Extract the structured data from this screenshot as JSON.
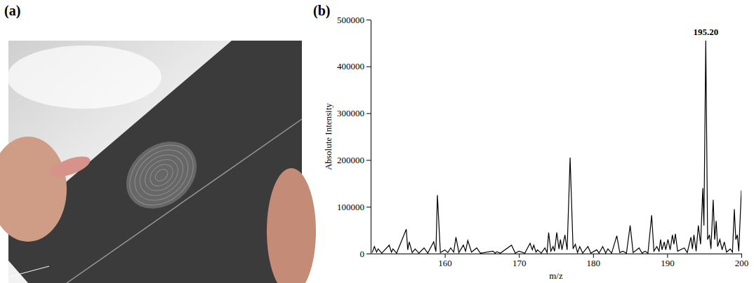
{
  "photo_panel": {
    "label": "(a)"
  },
  "chart_data": {
    "type": "line",
    "panel_label": "(b)",
    "x_label": "m/z",
    "y_label": "Absolute Intensity",
    "color": "#000000",
    "xlim": [
      150,
      200
    ],
    "xticks": [
      160,
      170,
      180,
      190,
      200
    ],
    "ylim": [
      0,
      500000
    ],
    "yticks": [
      0,
      100000,
      200000,
      300000,
      400000,
      500000
    ],
    "grid": false,
    "annotations": [
      {
        "x": 195.2,
        "y": 455000,
        "text": "195.20"
      }
    ],
    "x": [
      150.2,
      150.5,
      150.8,
      151.0,
      151.5,
      152.5,
      152.8,
      153.0,
      153.5,
      154.8,
      155.0,
      155.2,
      155.6,
      156.0,
      156.5,
      157.2,
      157.7,
      158.5,
      158.8,
      159.0,
      159.4,
      160.0,
      160.4,
      160.8,
      161.2,
      161.5,
      161.9,
      162.5,
      162.8,
      163.1,
      163.6,
      164.3,
      164.8,
      166.5,
      166.8,
      167.0,
      167.5,
      169.0,
      169.5,
      170.0,
      170.8,
      171.5,
      171.8,
      172.0,
      172.3,
      172.5,
      173.0,
      173.5,
      173.8,
      174.0,
      174.3,
      174.6,
      174.8,
      175.1,
      175.4,
      175.6,
      175.8,
      176.2,
      176.5,
      176.9,
      177.3,
      177.6,
      177.9,
      178.2,
      178.6,
      179.3,
      179.7,
      180.5,
      180.8,
      181.3,
      181.7,
      182.0,
      182.5,
      183.2,
      183.6,
      184.0,
      184.5,
      185.0,
      185.4,
      186.2,
      186.6,
      187.0,
      187.4,
      187.9,
      188.2,
      188.6,
      188.9,
      189.1,
      189.3,
      189.6,
      189.8,
      190.1,
      190.4,
      190.7,
      190.9,
      191.1,
      191.4,
      192.3,
      192.7,
      193.2,
      193.4,
      193.6,
      193.9,
      194.2,
      194.5,
      194.8,
      194.95,
      195.2,
      195.45,
      195.7,
      195.9,
      196.2,
      196.4,
      196.6,
      196.8,
      197.1,
      197.4,
      197.7,
      198.0,
      198.5,
      198.8,
      199.05,
      199.25,
      199.45,
      199.65,
      200.0
    ],
    "values": [
      2000,
      15000,
      3000,
      10000,
      1000,
      18000,
      3000,
      10000,
      1000,
      52000,
      8000,
      25000,
      2000,
      10000,
      1000,
      12000,
      1000,
      25000,
      4000,
      125000,
      2000,
      8000,
      2000,
      12000,
      3000,
      35000,
      2000,
      18000,
      5000,
      28000,
      3000,
      12000,
      1000,
      5000,
      1000,
      4000,
      1000,
      18000,
      1000,
      5000,
      1000,
      22000,
      8000,
      18000,
      3000,
      8000,
      1000,
      12000,
      2000,
      45000,
      5000,
      15000,
      5000,
      45000,
      10000,
      30000,
      8000,
      40000,
      8000,
      205000,
      10000,
      20000,
      2000,
      15000,
      1000,
      15000,
      1000,
      8000,
      1000,
      15000,
      1000,
      10000,
      1000,
      38000,
      2000,
      5000,
      1000,
      60000,
      2000,
      12000,
      1000,
      5000,
      1000,
      82000,
      5000,
      15000,
      5000,
      30000,
      8000,
      25000,
      8000,
      30000,
      8000,
      40000,
      20000,
      42000,
      5000,
      12000,
      2000,
      35000,
      10000,
      40000,
      5000,
      60000,
      20000,
      140000,
      60000,
      455000,
      30000,
      40000,
      10000,
      115000,
      30000,
      70000,
      15000,
      30000,
      8000,
      25000,
      3000,
      10000,
      3000,
      95000,
      30000,
      40000,
      5000,
      135000
    ]
  }
}
